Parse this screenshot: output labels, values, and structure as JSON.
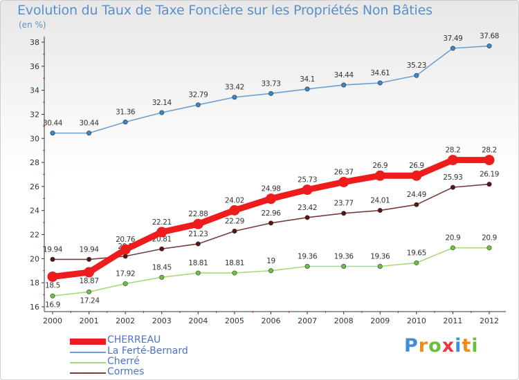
{
  "title": "Evolution du Taux de Taxe Foncière sur les Propriétés Non Bâties",
  "unit_label": "(en %)",
  "brand": [
    "P",
    "r",
    "o",
    "x",
    "i",
    "t",
    "i"
  ],
  "brand_colors": [
    "#3f8fd6",
    "#f08a1c",
    "#6abf3c",
    "#e23b3b",
    "#3f8fd6",
    "#f08a1c",
    "#6abf3c"
  ],
  "chart_data": {
    "type": "line",
    "x": [
      "2000",
      "2001",
      "2002",
      "2003",
      "2004",
      "2005",
      "2006",
      "2007",
      "2008",
      "2009",
      "2010",
      "2011",
      "2012"
    ],
    "ylim": [
      16,
      38
    ],
    "yticks": [
      16,
      18,
      20,
      22,
      24,
      26,
      28,
      30,
      32,
      34,
      36,
      38
    ],
    "grid": false,
    "legend_position": "bottom-left",
    "series": [
      {
        "name": "La Ferté-Bernard",
        "color": "#6aa0d0",
        "marker_color": "#3a86cc",
        "values": [
          30.44,
          30.44,
          31.36,
          32.14,
          32.79,
          33.42,
          33.73,
          34.1,
          34.44,
          34.61,
          35.23,
          37.49,
          37.68
        ],
        "labels": [
          "30.44",
          "30.44",
          "31.36",
          "32.14",
          "32.79",
          "33.42",
          "33.73",
          "34.1",
          "34.44",
          "34.61",
          "35.23",
          "37.49",
          "37.68"
        ]
      },
      {
        "name": "Cormes",
        "color": "#7a3a3a",
        "marker_color": "#5a1414",
        "values": [
          19.94,
          19.94,
          20.2,
          20.81,
          21.23,
          22.29,
          22.96,
          23.42,
          23.77,
          24.01,
          24.49,
          25.93,
          26.19
        ],
        "labels": [
          "19.94",
          "19.94",
          "20.2",
          "20.81",
          "21.23",
          "22.29",
          "22.96",
          "23.42",
          "23.77",
          "24.01",
          "24.49",
          "25.93",
          "26.19"
        ]
      },
      {
        "name": "Cherré",
        "color": "#a6d97a",
        "marker_color": "#6cc23e",
        "values": [
          16.9,
          17.24,
          17.92,
          18.45,
          18.81,
          18.81,
          19.0,
          19.36,
          19.36,
          19.36,
          19.65,
          20.9,
          20.9
        ],
        "labels": [
          "16.9",
          "17.24",
          "17.92",
          "18.45",
          "18.81",
          "18.81",
          "19",
          "19.36",
          "19.36",
          "19.36",
          "19.65",
          "20.9",
          "20.9"
        ]
      },
      {
        "name": "CHERREAU",
        "color": "#ee1c1c",
        "marker_color": "#ee1c1c",
        "values": [
          18.5,
          18.87,
          20.76,
          22.21,
          22.88,
          24.02,
          24.98,
          25.73,
          26.37,
          26.9,
          26.9,
          28.2,
          28.2
        ],
        "labels": [
          "18.5",
          "18.87",
          "20.76",
          "22.21",
          "22.88",
          "24.02",
          "24.98",
          "25.73",
          "26.37",
          "26.9",
          "26.9",
          "28.2",
          "28.2"
        ]
      }
    ]
  },
  "legend": {
    "items": [
      {
        "label": "CHERREAU",
        "color": "#ee1c1c",
        "thickness": 9
      },
      {
        "label": "La Ferté-Bernard",
        "color": "#6aa0d0",
        "thickness": 2
      },
      {
        "label": "Cherré",
        "color": "#a6d97a",
        "thickness": 2
      },
      {
        "label": "Cormes",
        "color": "#7a3a3a",
        "thickness": 2
      }
    ]
  }
}
